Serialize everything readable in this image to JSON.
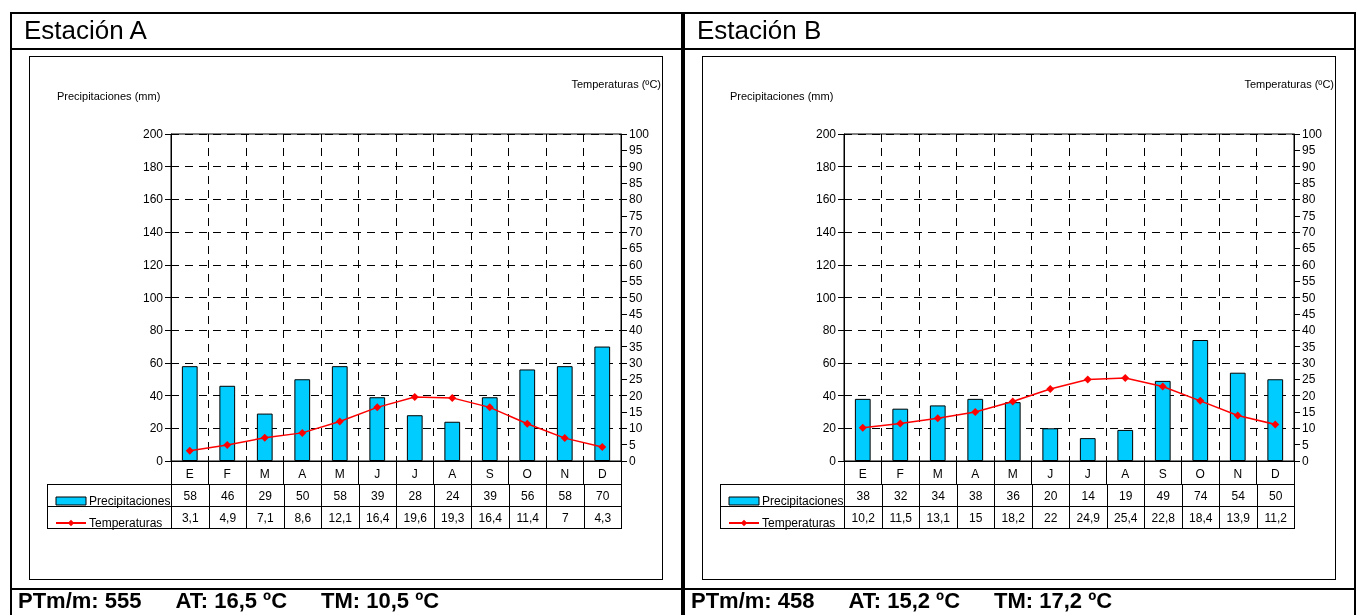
{
  "chart_data": [
    {
      "type": "bar",
      "title": "Estación A",
      "ylabel": "Precipitaciones (mm)",
      "y2label": "Temperaturas (ºC)",
      "categories": [
        "E",
        "F",
        "M",
        "A",
        "M",
        "J",
        "J",
        "A",
        "S",
        "O",
        "N",
        "D"
      ],
      "series": [
        {
          "name": "Precipitaciones",
          "color": "#00ccff",
          "values": [
            58,
            46,
            29,
            50,
            58,
            39,
            28,
            24,
            39,
            56,
            58,
            70
          ],
          "value_labels": [
            "58",
            "46",
            "29",
            "50",
            "58",
            "39",
            "28",
            "24",
            "39",
            "56",
            "58",
            "70"
          ]
        },
        {
          "name": "Temperaturas",
          "type": "line",
          "axis": "y2",
          "color": "#ff0000",
          "values": [
            3.1,
            4.9,
            7.1,
            8.6,
            12.1,
            16.4,
            19.6,
            19.3,
            16.4,
            11.4,
            7,
            4.3
          ],
          "value_labels": [
            "3,1",
            "4,9",
            "7,1",
            "8,6",
            "12,1",
            "16,4",
            "19,6",
            "19,3",
            "16,4",
            "11,4",
            "7",
            "4,3"
          ]
        }
      ],
      "ylim": [
        0,
        200
      ],
      "yticks": [
        0,
        20,
        40,
        60,
        80,
        100,
        120,
        140,
        160,
        180,
        200
      ],
      "y2lim": [
        0,
        100
      ],
      "y2ticks": [
        0,
        5,
        10,
        15,
        20,
        25,
        30,
        35,
        40,
        45,
        50,
        55,
        60,
        65,
        70,
        75,
        80,
        85,
        90,
        95,
        100
      ],
      "grid": true,
      "legend": "bottom left",
      "marker": "diamond",
      "line_style": "solid",
      "annotations": [
        "PTm/m: 555",
        "AT: 16,5 ºC",
        "TM: 10,5 ºC"
      ]
    },
    {
      "type": "bar",
      "title": "Estación B",
      "ylabel": "Precipitaciones (mm)",
      "y2label": "Temperaturas (ºC)",
      "categories": [
        "E",
        "F",
        "M",
        "A",
        "M",
        "J",
        "J",
        "A",
        "S",
        "O",
        "N",
        "D"
      ],
      "series": [
        {
          "name": "Precipitaciones",
          "color": "#00ccff",
          "values": [
            38,
            32,
            34,
            38,
            36,
            20,
            14,
            19,
            49,
            74,
            54,
            50
          ],
          "value_labels": [
            "38",
            "32",
            "34",
            "38",
            "36",
            "20",
            "14",
            "19",
            "49",
            "74",
            "54",
            "50"
          ]
        },
        {
          "name": "Temperaturas",
          "type": "line",
          "axis": "y2",
          "color": "#ff0000",
          "values": [
            10.2,
            11.5,
            13.1,
            15,
            18.2,
            22,
            24.9,
            25.4,
            22.8,
            18.4,
            13.9,
            11.2
          ],
          "value_labels": [
            "10,2",
            "11,5",
            "13,1",
            "15",
            "18,2",
            "22",
            "24,9",
            "25,4",
            "22,8",
            "18,4",
            "13,9",
            "11,2"
          ]
        }
      ],
      "ylim": [
        0,
        200
      ],
      "yticks": [
        0,
        20,
        40,
        60,
        80,
        100,
        120,
        140,
        160,
        180,
        200
      ],
      "y2lim": [
        0,
        100
      ],
      "y2ticks": [
        0,
        5,
        10,
        15,
        20,
        25,
        30,
        35,
        40,
        45,
        50,
        55,
        60,
        65,
        70,
        75,
        80,
        85,
        90,
        95,
        100
      ],
      "grid": true,
      "legend": "bottom left",
      "marker": "diamond",
      "line_style": "solid",
      "annotations": [
        "PTm/m: 458",
        "AT: 15,2 ºC",
        "TM: 17,2 ºC"
      ]
    }
  ]
}
